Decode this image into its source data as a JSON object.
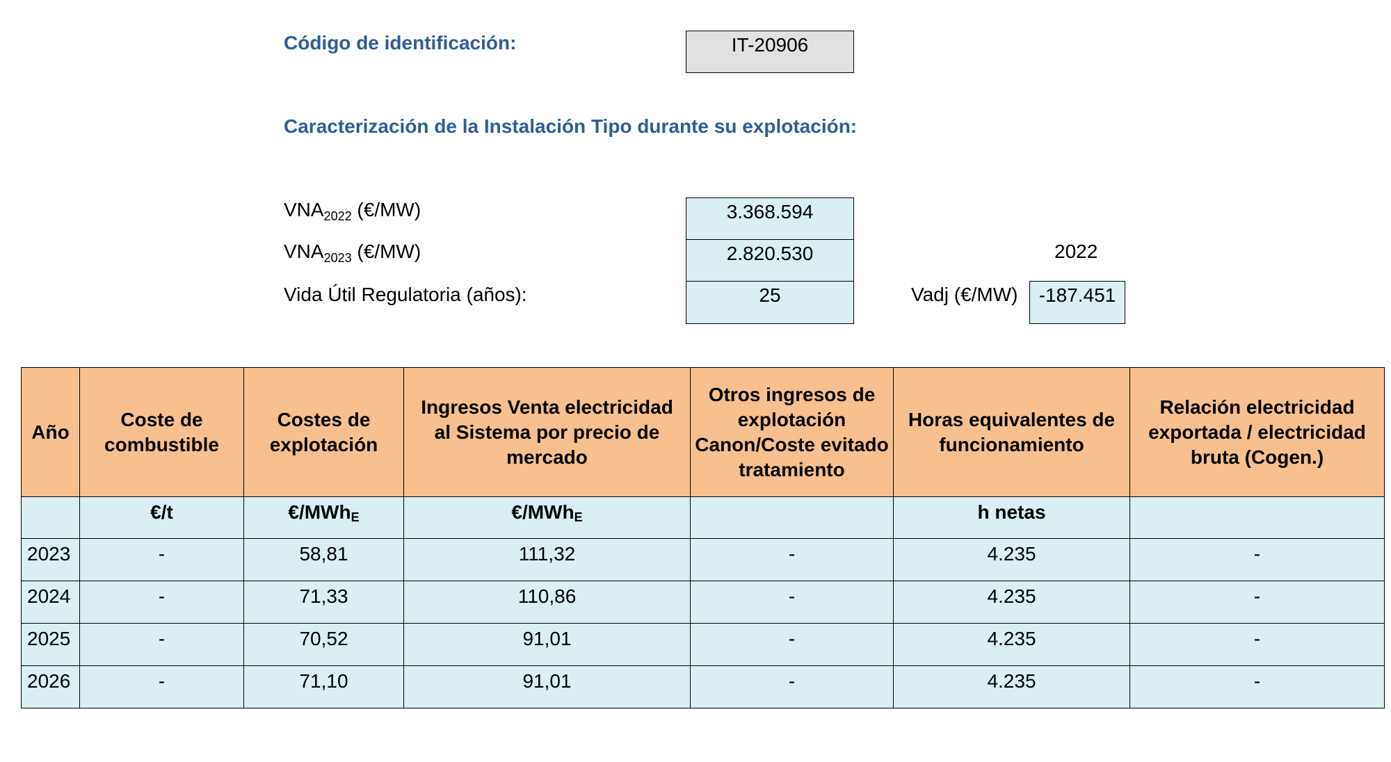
{
  "id_label": "Código de identificación:",
  "id_value": "IT-20906",
  "section_title": "Caracterización de la Instalación Tipo durante su explotación:",
  "params": {
    "vna1": {
      "prefix": "VNA",
      "sub": "2022",
      "suffix": "(€/MW)",
      "value": "3.368.594"
    },
    "vna2": {
      "prefix": "VNA",
      "sub": "2023",
      "suffix": "(€/MW)",
      "value": "2.820.530"
    },
    "vida": {
      "label": "Vida Útil Regulatoria (años):",
      "value": "25"
    }
  },
  "vadj": {
    "year": "2022",
    "label": "Vadj (€/MW)",
    "value": "-187.451"
  },
  "table": {
    "headers": [
      "Año",
      "Coste de combustible",
      "Costes de explotación",
      "Ingresos Venta electricidad al Sistema por precio de mercado",
      "Otros ingresos de explotación Canon/Coste evitado tratamiento",
      "Horas equivalentes de funcionamiento",
      "Relación electricidad exportada / electricidad bruta (Cogen.)"
    ],
    "units": [
      {
        "main": "",
        "sub": ""
      },
      {
        "main": "€/t",
        "sub": ""
      },
      {
        "main": "€/MWh",
        "sub": "E"
      },
      {
        "main": "€/MWh",
        "sub": "E"
      },
      {
        "main": "",
        "sub": ""
      },
      {
        "main": "h netas",
        "sub": ""
      },
      {
        "main": "",
        "sub": ""
      }
    ],
    "rows": [
      [
        "2023",
        "-",
        "58,81",
        "111,32",
        "-",
        "4.235",
        "-"
      ],
      [
        "2024",
        "-",
        "71,33",
        "110,86",
        "-",
        "4.235",
        "-"
      ],
      [
        "2025",
        "-",
        "70,52",
        "91,01",
        "-",
        "4.235",
        "-"
      ],
      [
        "2026",
        "-",
        "71,10",
        "91,01",
        "-",
        "4.235",
        "-"
      ]
    ]
  }
}
